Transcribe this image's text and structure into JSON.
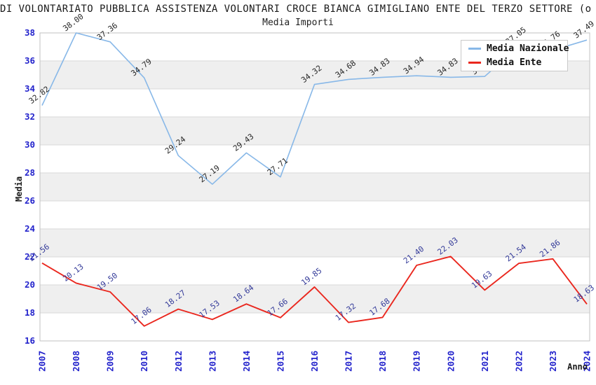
{
  "header": {
    "title": "DI VOLONTARIATO PUBBLICA ASSISTENZA VOLONTARI CROCE BIANCA GIMIGLIANO ENTE DEL TERZO SETTORE (o",
    "subtitle": "Media Importi"
  },
  "legend": {
    "items": [
      {
        "label": "Media Nazionale",
        "color": "#88b8e8"
      },
      {
        "label": "Media Ente",
        "color": "#ea271e"
      }
    ]
  },
  "axes": {
    "x_label": "Anno",
    "y_label": "Media"
  },
  "chart_data": {
    "type": "line",
    "title": "Media Importi",
    "xlabel": "Anno",
    "ylabel": "Media",
    "categories": [
      "2007",
      "2008",
      "2009",
      "2010",
      "2012",
      "2013",
      "2014",
      "2015",
      "2016",
      "2017",
      "2018",
      "2019",
      "2020",
      "2021",
      "2022",
      "2023",
      "2024"
    ],
    "series": [
      {
        "name": "Media Nazionale",
        "color": "#88b8e8",
        "label_color": "#262626",
        "values": [
          32.82,
          38.0,
          37.36,
          34.79,
          29.24,
          27.19,
          29.43,
          27.71,
          34.32,
          34.68,
          34.83,
          34.94,
          34.83,
          34.89,
          37.05,
          36.76,
          37.49
        ]
      },
      {
        "name": "Media Ente",
        "color": "#ea271e",
        "label_color": "#333a99",
        "values": [
          21.56,
          20.13,
          19.5,
          17.06,
          18.27,
          17.53,
          18.64,
          17.66,
          19.85,
          17.32,
          17.68,
          21.4,
          22.03,
          19.63,
          21.54,
          21.86,
          18.63
        ]
      }
    ],
    "ylim": [
      16,
      38
    ],
    "ytick_step": 2,
    "grid": true,
    "band_color": "#efefef",
    "grid_color": "#d9d9d9",
    "border_color": "#c2c2c2",
    "tick_color": "#2323cc",
    "legend_position": "top-right"
  }
}
